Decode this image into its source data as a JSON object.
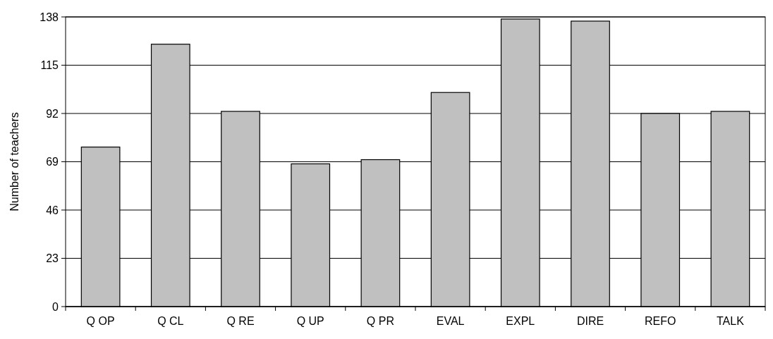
{
  "chart_data": {
    "type": "bar",
    "ylabel": "Number of teachers",
    "categories": [
      "Q OP",
      "Q CL",
      "Q RE",
      "Q UP",
      "Q PR",
      "EVAL",
      "EXPL",
      "DIRE",
      "REFO",
      "TALK"
    ],
    "values": [
      76,
      125,
      93,
      68,
      70,
      102,
      137,
      136,
      92,
      93
    ],
    "color": "#c0c0c0",
    "ylim": [
      0,
      138
    ],
    "yticks": [
      0,
      23,
      46,
      69,
      92,
      115,
      138
    ],
    "grid": "y"
  }
}
